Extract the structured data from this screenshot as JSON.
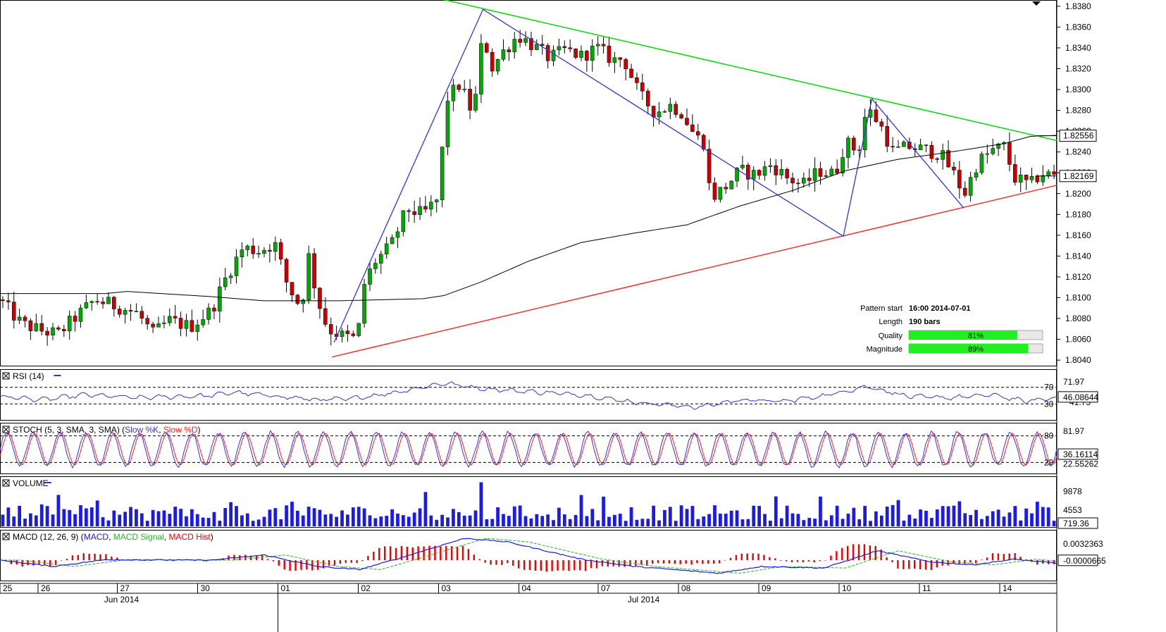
{
  "chart_data": {
    "type": "candlestick",
    "main": {
      "y_ticks": [
        "1.8380",
        "1.8360",
        "1.8340",
        "1.8320",
        "1.8300",
        "1.8280",
        "1.8260",
        "1.8240",
        "1.8220",
        "1.8200",
        "1.8180",
        "1.8160",
        "1.8140",
        "1.8120",
        "1.8100",
        "1.8080",
        "1.8060",
        "1.8040"
      ],
      "ylim": [
        1.8034,
        1.8386
      ],
      "current_price": "1.82169",
      "marker_price": "1.82556",
      "pattern_info": {
        "pattern_start_label": "Pattern start",
        "pattern_start_value": "16:00 2014-07-01",
        "length_label": "Length",
        "length_value": "190 bars",
        "quality_label": "Quality",
        "quality_value": "81%",
        "quality_fraction": 0.81,
        "magnitude_label": "Magnitude",
        "magnitude_value": "89%",
        "magnitude_fraction": 0.89
      },
      "resistance_line": [
        [
          0.4,
          1.8391
        ],
        [
          1.0,
          1.8251
        ]
      ],
      "support_line": [
        [
          0.314,
          1.8043
        ],
        [
          1.0,
          1.8208
        ]
      ],
      "zigzag": [
        [
          0.316,
          1.8057
        ],
        [
          0.457,
          1.8377
        ],
        [
          0.798,
          1.8159
        ],
        [
          0.825,
          1.8291
        ],
        [
          0.912,
          1.8186
        ]
      ],
      "anchors": [
        [
          0.0,
          1.8098
        ],
        [
          0.02,
          1.8075
        ],
        [
          0.04,
          1.8068
        ],
        [
          0.055,
          1.8065
        ],
        [
          0.07,
          1.808
        ],
        [
          0.09,
          1.8098
        ],
        [
          0.11,
          1.8092
        ],
        [
          0.13,
          1.8085
        ],
        [
          0.145,
          1.8065
        ],
        [
          0.16,
          1.8078
        ],
        [
          0.18,
          1.8072
        ],
        [
          0.2,
          1.8088
        ],
        [
          0.215,
          1.8122
        ],
        [
          0.23,
          1.8148
        ],
        [
          0.245,
          1.8145
        ],
        [
          0.26,
          1.8152
        ],
        [
          0.272,
          1.8112
        ],
        [
          0.285,
          1.809
        ],
        [
          0.292,
          1.814
        ],
        [
          0.3,
          1.81
        ],
        [
          0.31,
          1.807
        ],
        [
          0.325,
          1.8063
        ],
        [
          0.338,
          1.806
        ],
        [
          0.345,
          1.8115
        ],
        [
          0.355,
          1.8135
        ],
        [
          0.37,
          1.815
        ],
        [
          0.385,
          1.8185
        ],
        [
          0.4,
          1.818
        ],
        [
          0.415,
          1.8195
        ],
        [
          0.422,
          1.829
        ],
        [
          0.435,
          1.8305
        ],
        [
          0.448,
          1.8275
        ],
        [
          0.457,
          1.8355
        ],
        [
          0.465,
          1.832
        ],
        [
          0.475,
          1.8335
        ],
        [
          0.49,
          1.8352
        ],
        [
          0.505,
          1.8342
        ],
        [
          0.52,
          1.833
        ],
        [
          0.535,
          1.8338
        ],
        [
          0.55,
          1.8332
        ],
        [
          0.565,
          1.834
        ],
        [
          0.58,
          1.8328
        ],
        [
          0.59,
          1.833
        ],
        [
          0.605,
          1.8295
        ],
        [
          0.62,
          1.8278
        ],
        [
          0.635,
          1.8285
        ],
        [
          0.645,
          1.8278
        ],
        [
          0.658,
          1.8255
        ],
        [
          0.668,
          1.8248
        ],
        [
          0.672,
          1.8195
        ],
        [
          0.685,
          1.8205
        ],
        [
          0.7,
          1.8222
        ],
        [
          0.715,
          1.8218
        ],
        [
          0.73,
          1.8228
        ],
        [
          0.745,
          1.8215
        ],
        [
          0.76,
          1.8208
        ],
        [
          0.775,
          1.8222
        ],
        [
          0.79,
          1.8218
        ],
        [
          0.8,
          1.825
        ],
        [
          0.812,
          1.824
        ],
        [
          0.82,
          1.8282
        ],
        [
          0.832,
          1.8268
        ],
        [
          0.845,
          1.824
        ],
        [
          0.86,
          1.8245
        ],
        [
          0.875,
          1.8242
        ],
        [
          0.89,
          1.8238
        ],
        [
          0.905,
          1.8215
        ],
        [
          0.912,
          1.8198
        ],
        [
          0.925,
          1.823
        ],
        [
          0.94,
          1.8242
        ],
        [
          0.95,
          1.8245
        ],
        [
          0.96,
          1.8215
        ],
        [
          0.975,
          1.8208
        ],
        [
          0.985,
          1.822
        ],
        [
          1.0,
          1.8216
        ]
      ],
      "sma_curve": [
        [
          0.0,
          1.8104
        ],
        [
          0.1,
          1.8104
        ],
        [
          0.12,
          1.8106
        ],
        [
          0.2,
          1.8101
        ],
        [
          0.25,
          1.8097
        ],
        [
          0.32,
          1.8097
        ],
        [
          0.4,
          1.8099
        ],
        [
          0.42,
          1.8102
        ],
        [
          0.455,
          1.8115
        ],
        [
          0.5,
          1.8135
        ],
        [
          0.55,
          1.8153
        ],
        [
          0.6,
          1.8162
        ],
        [
          0.65,
          1.817
        ],
        [
          0.7,
          1.8188
        ],
        [
          0.75,
          1.8203
        ],
        [
          0.8,
          1.8222
        ],
        [
          0.85,
          1.8233
        ],
        [
          0.9,
          1.824
        ],
        [
          0.95,
          1.8248
        ],
        [
          0.975,
          1.8255
        ],
        [
          1.0,
          1.8256
        ]
      ]
    },
    "x_axis": {
      "day_labels": [
        {
          "label": "25",
          "pos": 0.0
        },
        {
          "label": "26",
          "pos": 0.036
        },
        {
          "label": "27",
          "pos": 0.111
        },
        {
          "label": "30",
          "pos": 0.187
        },
        {
          "label": "01",
          "pos": 0.263
        },
        {
          "label": "02",
          "pos": 0.339
        },
        {
          "label": "03",
          "pos": 0.415
        },
        {
          "label": "04",
          "pos": 0.491
        },
        {
          "label": "07",
          "pos": 0.566
        },
        {
          "label": "08",
          "pos": 0.642
        },
        {
          "label": "09",
          "pos": 0.718
        },
        {
          "label": "10",
          "pos": 0.794
        },
        {
          "label": "11",
          "pos": 0.87
        },
        {
          "label": "14",
          "pos": 0.946
        }
      ],
      "month_labels": [
        {
          "label": "Jun 2014",
          "pos": 0.115
        },
        {
          "label": "Jul 2014",
          "pos": 0.609
        }
      ]
    },
    "rsi": {
      "title": "RSI (14)",
      "levels": [
        70,
        30
      ],
      "right_labels": [
        "71.97",
        "46.08644"
      ],
      "current_value": "46.08644",
      "anchors": [
        [
          0,
          48
        ],
        [
          0.04,
          40
        ],
        [
          0.08,
          52
        ],
        [
          0.13,
          45
        ],
        [
          0.2,
          50
        ],
        [
          0.22,
          58
        ],
        [
          0.3,
          40
        ],
        [
          0.33,
          42
        ],
        [
          0.37,
          56
        ],
        [
          0.42,
          80
        ],
        [
          0.46,
          66
        ],
        [
          0.5,
          60
        ],
        [
          0.55,
          52
        ],
        [
          0.6,
          34
        ],
        [
          0.66,
          22
        ],
        [
          0.7,
          40
        ],
        [
          0.74,
          36
        ],
        [
          0.78,
          50
        ],
        [
          0.82,
          72
        ],
        [
          0.86,
          48
        ],
        [
          0.9,
          45
        ],
        [
          0.94,
          52
        ],
        [
          0.97,
          36
        ],
        [
          1.0,
          46
        ]
      ]
    },
    "stoch": {
      "title": "STOCH (5, 3, SMA, 3, SMA)",
      "k_label": "Slow %K",
      "d_label": "Slow %D",
      "levels": [
        80,
        20
      ],
      "right_labels": [
        "81.97",
        "36.16114",
        "22.55262"
      ],
      "cycles": 40
    },
    "volume": {
      "title": "VOLUME",
      "right_labels": [
        "9878",
        "4553",
        "719.36"
      ],
      "ylim": [
        0,
        13000
      ]
    },
    "macd": {
      "title": "MACD (12, 26, 9)",
      "macd_label": "MACD",
      "signal_label": "MACD Signal",
      "hist_label": "MACD Hist",
      "right_labels": [
        "0.0032363",
        "-0.0000665"
      ],
      "anchors": [
        [
          0,
          0.0
        ],
        [
          0.05,
          -0.0012
        ],
        [
          0.1,
          0.0001
        ],
        [
          0.2,
          0.0
        ],
        [
          0.25,
          0.001
        ],
        [
          0.3,
          -0.0012
        ],
        [
          0.34,
          -0.0018
        ],
        [
          0.38,
          0.0005
        ],
        [
          0.42,
          0.003
        ],
        [
          0.44,
          0.0042
        ],
        [
          0.48,
          0.0035
        ],
        [
          0.55,
          0.0002
        ],
        [
          0.6,
          -0.0012
        ],
        [
          0.65,
          -0.002
        ],
        [
          0.68,
          -0.0025
        ],
        [
          0.72,
          -0.0012
        ],
        [
          0.78,
          -0.0015
        ],
        [
          0.83,
          0.0018
        ],
        [
          0.88,
          -0.0003
        ],
        [
          0.92,
          -0.0009
        ],
        [
          0.96,
          0.0002
        ],
        [
          1.0,
          -0.0006
        ]
      ]
    },
    "colors": {
      "bull": "#00aa00",
      "bear": "#cc0000",
      "wick": "#000000",
      "resistance": "#00dd00",
      "support": "#ff3030",
      "zigzag": "#3333dd",
      "sma": "#000000",
      "rsi_line": "#3333dd",
      "stoch_k": "#3333dd",
      "stoch_d": "#ff2020",
      "volume_bar": "#1a1aee",
      "macd_line": "#1a1aee",
      "signal_line": "#22bb22",
      "hist": "#ee0000",
      "quality_bar": "#22ee22"
    }
  }
}
